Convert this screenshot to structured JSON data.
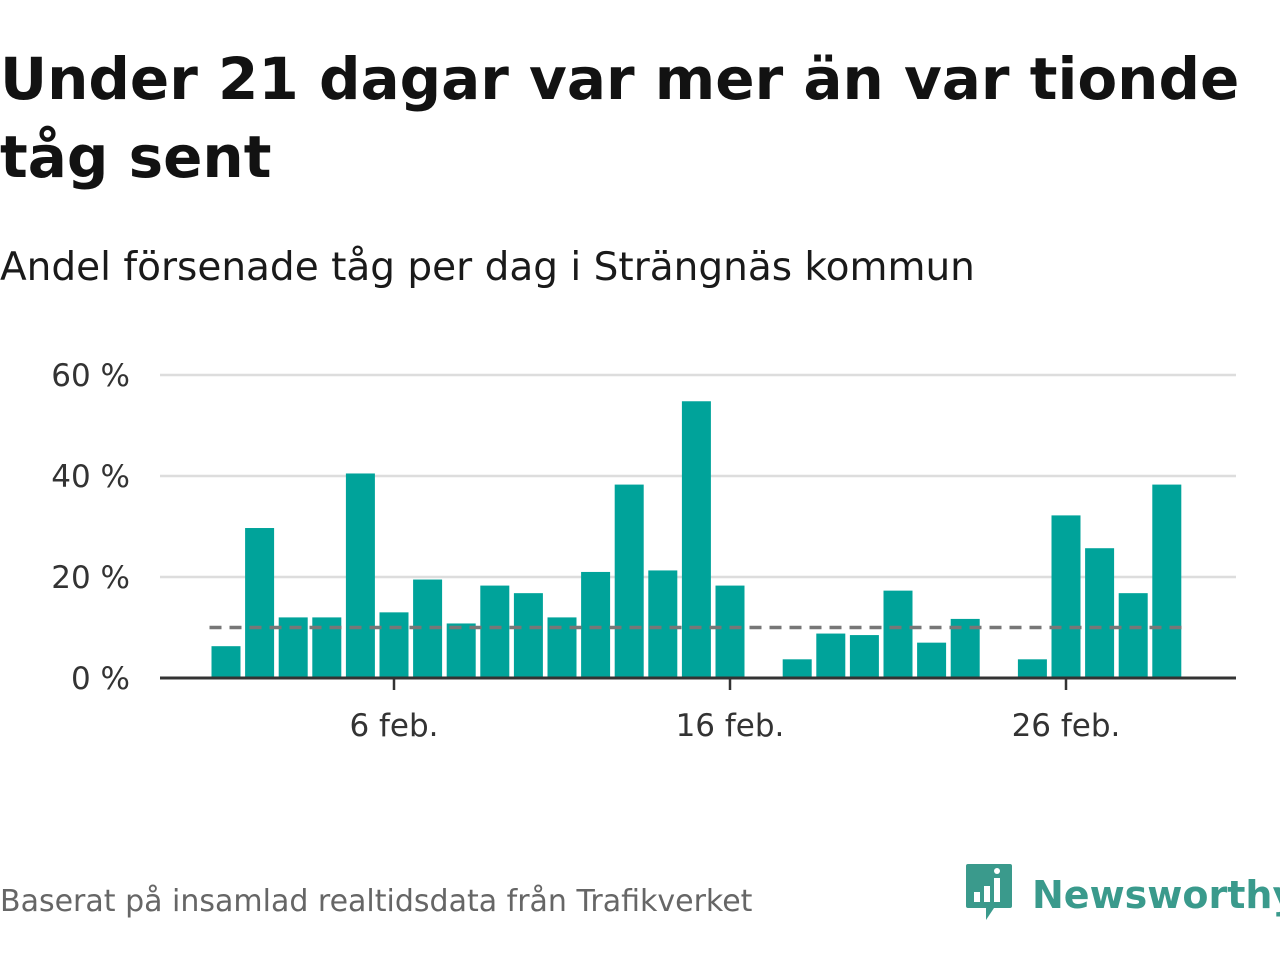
{
  "title": "Under 21 dagar var mer än var tionde tåg sent",
  "subtitle": "Andel försenade tåg per dag i Strängnäs kommun",
  "footer": "Baserat på insamlad realtidsdata från Trafikverket",
  "brand": {
    "name": "Newsworthy",
    "icon": "newsworthy-logo-icon",
    "color": "#3a9a8c"
  },
  "colors": {
    "bar": "#00a39a",
    "reference": "#777777",
    "grid": "#dddddd",
    "axis": "#333333"
  },
  "chart_data": {
    "type": "bar",
    "x": [
      "2024-02-01",
      "2024-02-02",
      "2024-02-03",
      "2024-02-04",
      "2024-02-05",
      "2024-02-06",
      "2024-02-07",
      "2024-02-08",
      "2024-02-09",
      "2024-02-10",
      "2024-02-11",
      "2024-02-12",
      "2024-02-13",
      "2024-02-14",
      "2024-02-15",
      "2024-02-16",
      "2024-02-17",
      "2024-02-18",
      "2024-02-19",
      "2024-02-20",
      "2024-02-21",
      "2024-02-22",
      "2024-02-23",
      "2024-02-24",
      "2024-02-25",
      "2024-02-26",
      "2024-02-27",
      "2024-02-28",
      "2024-02-29"
    ],
    "values": [
      6.3,
      29.7,
      12.0,
      12.0,
      40.5,
      13.0,
      19.5,
      10.8,
      18.3,
      16.8,
      12.0,
      21.0,
      38.3,
      21.3,
      54.8,
      18.3,
      0,
      3.7,
      8.8,
      8.5,
      17.3,
      7.0,
      11.7,
      0,
      3.7,
      32.2,
      25.7,
      16.8,
      38.3
    ],
    "reference_line": {
      "value": 10,
      "style": "dashed"
    },
    "x_ticks": [
      {
        "x": "2024-02-06",
        "label": "6 feb."
      },
      {
        "x": "2024-02-16",
        "label": "16 feb."
      },
      {
        "x": "2024-02-26",
        "label": "26 feb."
      }
    ],
    "y_ticks": [
      {
        "value": 0,
        "label": "0 %"
      },
      {
        "value": 20,
        "label": "20 %"
      },
      {
        "value": 40,
        "label": "40 %"
      },
      {
        "value": 60,
        "label": "60 %"
      }
    ],
    "ylim": [
      0,
      60
    ],
    "grid": true,
    "xlabel": "",
    "ylabel": ""
  }
}
